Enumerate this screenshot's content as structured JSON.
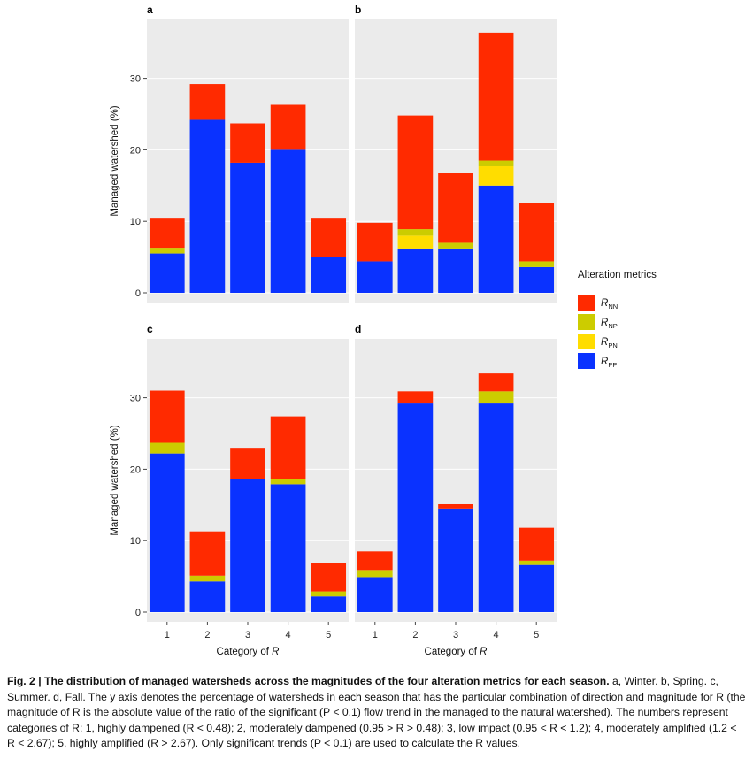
{
  "chart_data": [
    {
      "panel": "a",
      "type": "bar",
      "stacked": true,
      "categories": [
        "1",
        "2",
        "3",
        "4",
        "5"
      ],
      "series": [
        {
          "name": "R_PP",
          "values": [
            5.5,
            24.2,
            18.2,
            20.0,
            5.0
          ]
        },
        {
          "name": "R_PN",
          "values": [
            0,
            0,
            0,
            0,
            0
          ]
        },
        {
          "name": "R_NP",
          "values": [
            0.8,
            0,
            0,
            0,
            0
          ]
        },
        {
          "name": "R_NN",
          "values": [
            4.2,
            5.0,
            5.5,
            6.3,
            5.5
          ]
        }
      ],
      "ylabel": "Managed watershed (%)",
      "xlabel": "",
      "ylim": [
        0,
        38
      ],
      "yticks": [
        0,
        10,
        20,
        30
      ]
    },
    {
      "panel": "b",
      "type": "bar",
      "stacked": true,
      "categories": [
        "1",
        "2",
        "3",
        "4",
        "5"
      ],
      "series": [
        {
          "name": "R_PP",
          "values": [
            4.4,
            6.2,
            6.2,
            15.0,
            3.6
          ]
        },
        {
          "name": "R_PN",
          "values": [
            0,
            1.8,
            0,
            2.7,
            0
          ]
        },
        {
          "name": "R_NP",
          "values": [
            0,
            0.9,
            0.8,
            0.8,
            0.8
          ]
        },
        {
          "name": "R_NN",
          "values": [
            5.4,
            15.9,
            9.8,
            17.9,
            8.1
          ]
        }
      ],
      "ylabel": "",
      "xlabel": "",
      "ylim": [
        0,
        38
      ],
      "yticks": [
        0,
        10,
        20,
        30
      ]
    },
    {
      "panel": "c",
      "type": "bar",
      "stacked": true,
      "categories": [
        "1",
        "2",
        "3",
        "4",
        "5"
      ],
      "series": [
        {
          "name": "R_PP",
          "values": [
            22.2,
            4.3,
            18.6,
            17.9,
            2.2
          ]
        },
        {
          "name": "R_PN",
          "values": [
            0,
            0,
            0,
            0,
            0
          ]
        },
        {
          "name": "R_NP",
          "values": [
            1.5,
            0.8,
            0,
            0.7,
            0.7
          ]
        },
        {
          "name": "R_NN",
          "values": [
            7.3,
            6.2,
            4.4,
            8.8,
            4.0
          ]
        }
      ],
      "ylabel": "Managed watershed (%)",
      "xlabel": "Category of R",
      "ylim": [
        0,
        38
      ],
      "yticks": [
        0,
        10,
        20,
        30
      ]
    },
    {
      "panel": "d",
      "type": "bar",
      "stacked": true,
      "categories": [
        "1",
        "2",
        "3",
        "4",
        "5"
      ],
      "series": [
        {
          "name": "R_PP",
          "values": [
            4.9,
            29.2,
            14.5,
            29.2,
            6.6
          ]
        },
        {
          "name": "R_PN",
          "values": [
            0,
            0,
            0,
            0,
            0
          ]
        },
        {
          "name": "R_NP",
          "values": [
            1.0,
            0,
            0,
            1.7,
            0.6
          ]
        },
        {
          "name": "R_NN",
          "values": [
            2.6,
            1.7,
            0.6,
            2.5,
            4.6
          ]
        }
      ],
      "ylabel": "",
      "xlabel": "Category of R",
      "ylim": [
        0,
        38
      ],
      "yticks": [
        0,
        10,
        20,
        30
      ]
    }
  ],
  "legend": {
    "title": "Alteration metrics",
    "items": [
      {
        "key": "R_NN",
        "label": "R",
        "sub": "NN",
        "color": "#ff2a00"
      },
      {
        "key": "R_NP",
        "label": "R",
        "sub": "NP",
        "color": "#cccc00"
      },
      {
        "key": "R_PN",
        "label": "R",
        "sub": "PN",
        "color": "#ffdd00"
      },
      {
        "key": "R_PP",
        "label": "R",
        "sub": "PP",
        "color": "#0a32ff"
      }
    ]
  },
  "caption": {
    "lead": "Fig. 2 | The distribution of managed watersheds across the magnitudes of the four alteration metrics for each season.",
    "body": " a, Winter. b, Spring. c, Summer. d, Fall. The y axis denotes the percentage of watersheds in each season that has the particular combination of direction and magnitude for R (the magnitude of R is the absolute value of the ratio of the significant (P < 0.1) flow trend in the managed to the natural watershed). The numbers represent categories of R: 1, highly dampened (R < 0.48); 2, moderately dampened (0.95 > R > 0.48); 3, low impact (0.95 < R < 1.2); 4, moderately amplified (1.2 < R < 2.67); 5, highly amplified (R > 2.67). Only significant trends (P < 0.1) are used to calculate the R values."
  }
}
